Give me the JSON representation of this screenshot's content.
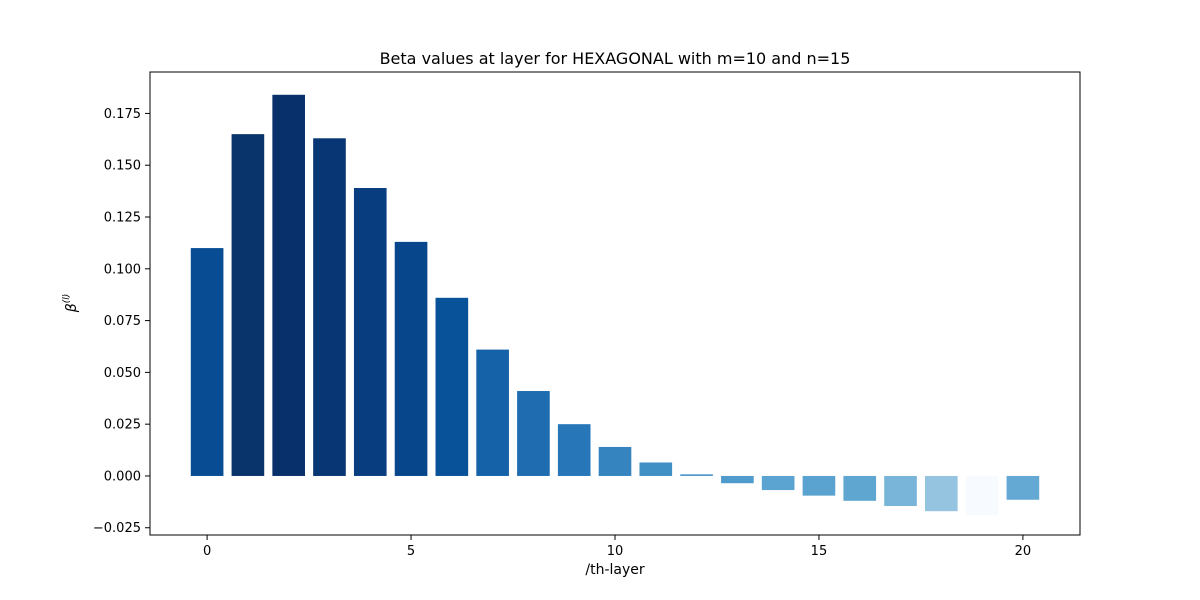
{
  "chart_data": {
    "type": "bar",
    "title": "Beta values at layer for HEXAGONAL with m=10 and n=15",
    "xlabel": "/th-layer",
    "ylabel": "β(l)",
    "x": [
      0,
      1,
      2,
      3,
      4,
      5,
      6,
      7,
      8,
      9,
      10,
      11,
      12,
      13,
      14,
      15,
      16,
      17,
      18,
      19,
      20
    ],
    "values": [
      0.11,
      0.165,
      0.184,
      0.163,
      0.139,
      0.113,
      0.086,
      0.061,
      0.041,
      0.025,
      0.014,
      0.0065,
      0.0008,
      -0.0035,
      -0.0068,
      -0.0095,
      -0.012,
      -0.0145,
      -0.017,
      -0.019,
      -0.0115
    ],
    "colors": [
      "#084d94",
      "#08336b",
      "#08306b",
      "#083573",
      "#083d80",
      "#08468c",
      "#08529a",
      "#1562a9",
      "#1f6cb1",
      "#2777b8",
      "#3584c0",
      "#4090c5",
      "#4a98ca",
      "#4f9bcb",
      "#5ba3d0",
      "#5aa2cf",
      "#5fa6d1",
      "#79b5d9",
      "#94c4df",
      "#f7fbff",
      "#64a9d3"
    ],
    "xlim": [
      -1.4,
      21.4
    ],
    "ylim": [
      -0.0285,
      0.195
    ],
    "xticks": [
      0,
      5,
      10,
      15,
      20
    ],
    "xtick_labels": [
      "0",
      "5",
      "10",
      "15",
      "20"
    ],
    "yticks": [
      -0.025,
      0.0,
      0.025,
      0.05,
      0.075,
      0.1,
      0.125,
      0.15,
      0.175
    ],
    "ytick_labels": [
      "−0.025",
      "0.000",
      "0.025",
      "0.050",
      "0.075",
      "0.100",
      "0.125",
      "0.150",
      "0.175"
    ],
    "grid": false,
    "legend": "none"
  }
}
